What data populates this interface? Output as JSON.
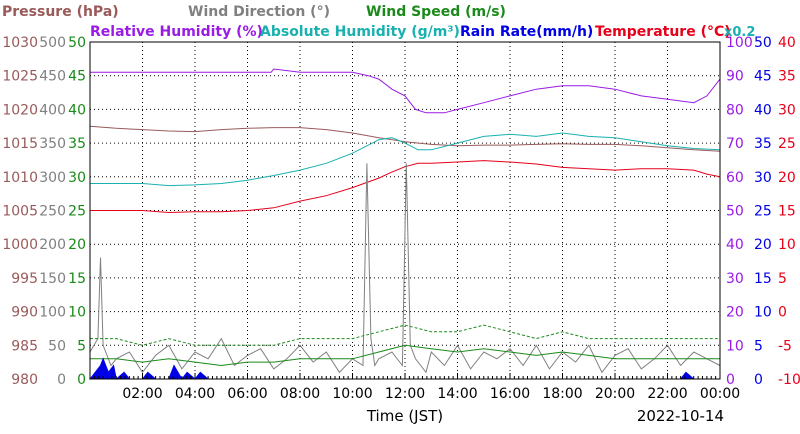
{
  "chart_data": {
    "type": "line",
    "date": "2022-10-14",
    "xlabel": "Time (JST)",
    "scale_note": "x0.2",
    "x_ticks": [
      "02:00",
      "04:00",
      "06:00",
      "08:00",
      "10:00",
      "12:00",
      "14:00",
      "16:00",
      "18:00",
      "20:00",
      "22:00",
      "00:00"
    ],
    "xlim": [
      0,
      24
    ],
    "grid": true,
    "legend": [
      {
        "name": "Pressure (hPa)",
        "color": "#9a5a5a"
      },
      {
        "name": "Wind Direction (°)",
        "color": "#808080"
      },
      {
        "name": "Wind Speed (m/s)",
        "color": "#1a8a1a"
      },
      {
        "name": "Relative Humidity (%)",
        "color": "#9a1ae6"
      },
      {
        "name": "Absolute Humidity (g/m³)",
        "color": "#1ab0b0"
      },
      {
        "name": "Rain Rate(mm/h)",
        "color": "#0000e6"
      },
      {
        "name": "Temperature (°C)",
        "color": "#e6001a"
      }
    ],
    "axes": [
      {
        "series": "Pressure",
        "side": "left",
        "color": "#9a5a5a",
        "ylim": [
          980,
          1030
        ],
        "ticks": [
          "980",
          "985",
          "990",
          "995",
          "1000",
          "1005",
          "1010",
          "1015",
          "1020",
          "1025",
          "1030"
        ]
      },
      {
        "series": "Wind Direction",
        "side": "left",
        "color": "#808080",
        "ylim": [
          0,
          500
        ],
        "ticks": [
          "0",
          "50",
          "100",
          "150",
          "200",
          "250",
          "300",
          "350",
          "400",
          "450",
          "500"
        ]
      },
      {
        "series": "Wind Speed",
        "side": "left",
        "color": "#1a8a1a",
        "ylim": [
          0,
          50
        ],
        "ticks": [
          "0",
          "5",
          "10",
          "15",
          "20",
          "25",
          "30",
          "35",
          "40",
          "45",
          "50"
        ]
      },
      {
        "series": "Relative Humidity",
        "side": "right",
        "color": "#9a1ae6",
        "ylim": [
          0,
          100
        ],
        "ticks": [
          "0",
          "10",
          "20",
          "30",
          "40",
          "50",
          "60",
          "70",
          "80",
          "90",
          "100"
        ]
      },
      {
        "series": "Rain Rate",
        "side": "right",
        "color": "#0000e6",
        "ylim": [
          0,
          50
        ],
        "ticks": [
          "0",
          "5",
          "10",
          "15",
          "20",
          "25",
          "30",
          "35",
          "40",
          "45",
          "50"
        ]
      },
      {
        "series": "Temperature",
        "side": "right",
        "color": "#e6001a",
        "ylim": [
          -10,
          40
        ],
        "ticks": [
          "-10",
          "-5",
          "0",
          "5",
          "10",
          "15",
          "20",
          "25",
          "30",
          "35",
          "40"
        ]
      }
    ],
    "series": [
      {
        "name": "Pressure",
        "color": "#9a5a5a",
        "axis": "Pressure",
        "x": [
          0,
          1,
          2,
          3,
          4,
          5,
          6,
          7,
          8,
          9,
          10,
          11,
          12,
          13,
          14,
          15,
          16,
          17,
          18,
          19,
          20,
          21,
          22,
          23,
          24
        ],
        "y": [
          1017.5,
          1017.2,
          1017.0,
          1016.8,
          1016.7,
          1017.0,
          1017.2,
          1017.3,
          1017.3,
          1017.0,
          1016.5,
          1015.8,
          1015.2,
          1014.8,
          1014.6,
          1014.7,
          1014.7,
          1014.8,
          1014.9,
          1014.8,
          1014.8,
          1014.6,
          1014.3,
          1014.0,
          1013.8
        ]
      },
      {
        "name": "Relative Humidity",
        "color": "#9a1ae6",
        "axis": "Relative Humidity",
        "x": [
          0,
          1,
          2,
          3,
          4,
          5,
          6,
          6.9,
          7,
          8,
          9,
          10,
          10.6,
          11,
          11.5,
          12,
          12.4,
          12.8,
          13,
          13.5,
          14,
          15,
          16,
          17,
          18,
          19,
          20,
          21,
          22,
          23,
          23.5,
          24
        ],
        "y": [
          91,
          91,
          91,
          91,
          91,
          91,
          91,
          91,
          92,
          91,
          91,
          91,
          90,
          89,
          86,
          84,
          80,
          79,
          79,
          79,
          80,
          82,
          84,
          86,
          87,
          87,
          86,
          84,
          83,
          82,
          84,
          89
        ]
      },
      {
        "name": "Absolute Humidity",
        "color": "#1ab0b0",
        "axis": "Rain Rate",
        "x": [
          0,
          1,
          2,
          3,
          4,
          5,
          6,
          7,
          8,
          9,
          10,
          11,
          11.5,
          12,
          12.5,
          13,
          14,
          15,
          16,
          17,
          18,
          19,
          20,
          21,
          22,
          23,
          24
        ],
        "y": [
          29,
          29,
          29,
          28.7,
          28.8,
          29,
          29.5,
          30.2,
          31,
          32,
          33.5,
          35.5,
          35.8,
          35,
          34,
          34,
          35,
          36,
          36.3,
          36,
          36.5,
          36,
          35.8,
          35.2,
          34.6,
          34.2,
          34
        ]
      },
      {
        "name": "Temperature",
        "color": "#e6001a",
        "axis": "Temperature",
        "x": [
          0,
          1,
          2,
          3,
          4,
          5,
          6,
          7,
          8,
          9,
          10,
          11,
          11.5,
          12,
          12.5,
          13,
          14,
          15,
          16,
          17,
          18,
          19,
          20,
          21,
          22,
          23,
          23.5,
          24
        ],
        "y": [
          15,
          15,
          15,
          14.7,
          14.8,
          14.8,
          15,
          15.4,
          16.4,
          17.2,
          18.4,
          19.8,
          20.7,
          21.5,
          22,
          22,
          22.2,
          22.4,
          22.2,
          21.9,
          21.4,
          21.2,
          21.0,
          21.2,
          21.2,
          21.0,
          20.4,
          20.0
        ]
      },
      {
        "name": "Wind Direction",
        "color": "#808080",
        "axis": "Wind Direction",
        "x": [
          0,
          0.3,
          0.4,
          0.5,
          0.8,
          1,
          1.5,
          2,
          2.5,
          3,
          3.5,
          4,
          4.5,
          5,
          5.5,
          6,
          6.5,
          7,
          7.5,
          8,
          8.5,
          9,
          9.5,
          10,
          10.4,
          10.55,
          10.7,
          10.85,
          11,
          11.5,
          11.9,
          12.05,
          12.2,
          12.4,
          12.8,
          13,
          13.5,
          14,
          14.5,
          15,
          15.5,
          16,
          16.5,
          17,
          17.5,
          18,
          18.5,
          19,
          19.5,
          20,
          20.5,
          21,
          21.5,
          22,
          22.5,
          23,
          23.5,
          24
        ],
        "y": [
          40,
          60,
          180,
          50,
          20,
          30,
          40,
          10,
          35,
          50,
          15,
          40,
          30,
          60,
          20,
          35,
          45,
          15,
          30,
          50,
          25,
          40,
          10,
          30,
          20,
          320,
          60,
          20,
          30,
          40,
          20,
          320,
          50,
          30,
          10,
          40,
          20,
          50,
          15,
          40,
          30,
          45,
          20,
          50,
          15,
          40,
          25,
          50,
          10,
          35,
          45,
          15,
          30,
          50,
          20,
          40,
          30,
          20
        ]
      },
      {
        "name": "Wind Speed",
        "color": "#1a8a1a",
        "axis": "Wind Speed",
        "x": [
          0,
          1,
          2,
          3,
          4,
          5,
          6,
          7,
          8,
          9,
          10,
          11,
          12,
          13,
          14,
          15,
          16,
          17,
          18,
          19,
          20,
          21,
          22,
          23,
          24
        ],
        "y": [
          3,
          3,
          2.5,
          3,
          2.5,
          2,
          2.5,
          2.5,
          3,
          3,
          3,
          4,
          5,
          4.5,
          4,
          4.5,
          4,
          3.5,
          4,
          3.5,
          3,
          3,
          3,
          3,
          3
        ]
      },
      {
        "name": "Wind Speed (max)",
        "color": "#1a8a1a",
        "axis": "Wind Speed",
        "x": [
          0,
          1,
          2,
          3,
          4,
          5,
          6,
          7,
          8,
          9,
          10,
          11,
          12,
          13,
          14,
          15,
          16,
          17,
          18,
          19,
          20,
          21,
          22,
          23,
          24
        ],
        "y": [
          6,
          6,
          5,
          6,
          5,
          5,
          5,
          5,
          6,
          6,
          6,
          7,
          8,
          7,
          7,
          8,
          7,
          6,
          7,
          6,
          6,
          6,
          6,
          6,
          6
        ]
      },
      {
        "name": "Rain Rate",
        "color": "#0000e6",
        "axis": "Rain Rate",
        "x": [
          0,
          0.4,
          0.5,
          0.7,
          0.9,
          1,
          1.3,
          1.5,
          2,
          2.2,
          2.5,
          3,
          3.2,
          3.5,
          3.7,
          4,
          4.2,
          4.5,
          5,
          21,
          22.5,
          22.7,
          23
        ],
        "y": [
          0,
          2,
          3,
          1,
          2,
          0,
          1,
          0,
          0,
          1,
          0,
          0,
          2,
          0,
          1,
          0,
          1,
          0,
          0,
          0,
          0,
          1,
          0
        ]
      }
    ]
  }
}
